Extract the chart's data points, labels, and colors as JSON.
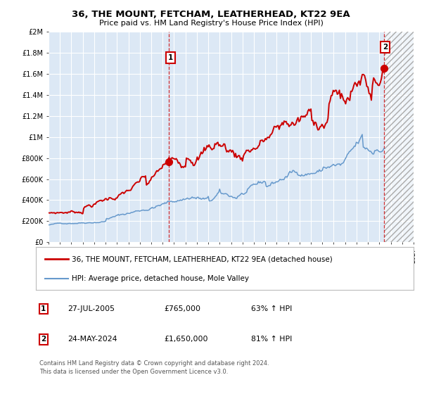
{
  "title": "36, THE MOUNT, FETCHAM, LEATHERHEAD, KT22 9EA",
  "subtitle": "Price paid vs. HM Land Registry's House Price Index (HPI)",
  "red_label": "36, THE MOUNT, FETCHAM, LEATHERHEAD, KT22 9EA (detached house)",
  "blue_label": "HPI: Average price, detached house, Mole Valley",
  "annotation1_year": 2005.57,
  "annotation1_value": 765000,
  "annotation2_year": 2024.38,
  "annotation2_value": 1650000,
  "footer": "Contains HM Land Registry data © Crown copyright and database right 2024.\nThis data is licensed under the Open Government Licence v3.0.",
  "ylim": [
    0,
    2000000
  ],
  "xlim_start": 1995,
  "xlim_end": 2027,
  "future_shade_start": 2024.5,
  "red_color": "#cc0000",
  "blue_color": "#6699cc",
  "dashed_color": "#cc0000",
  "background_color": "#ffffff",
  "plot_bg_color": "#dce8f5"
}
